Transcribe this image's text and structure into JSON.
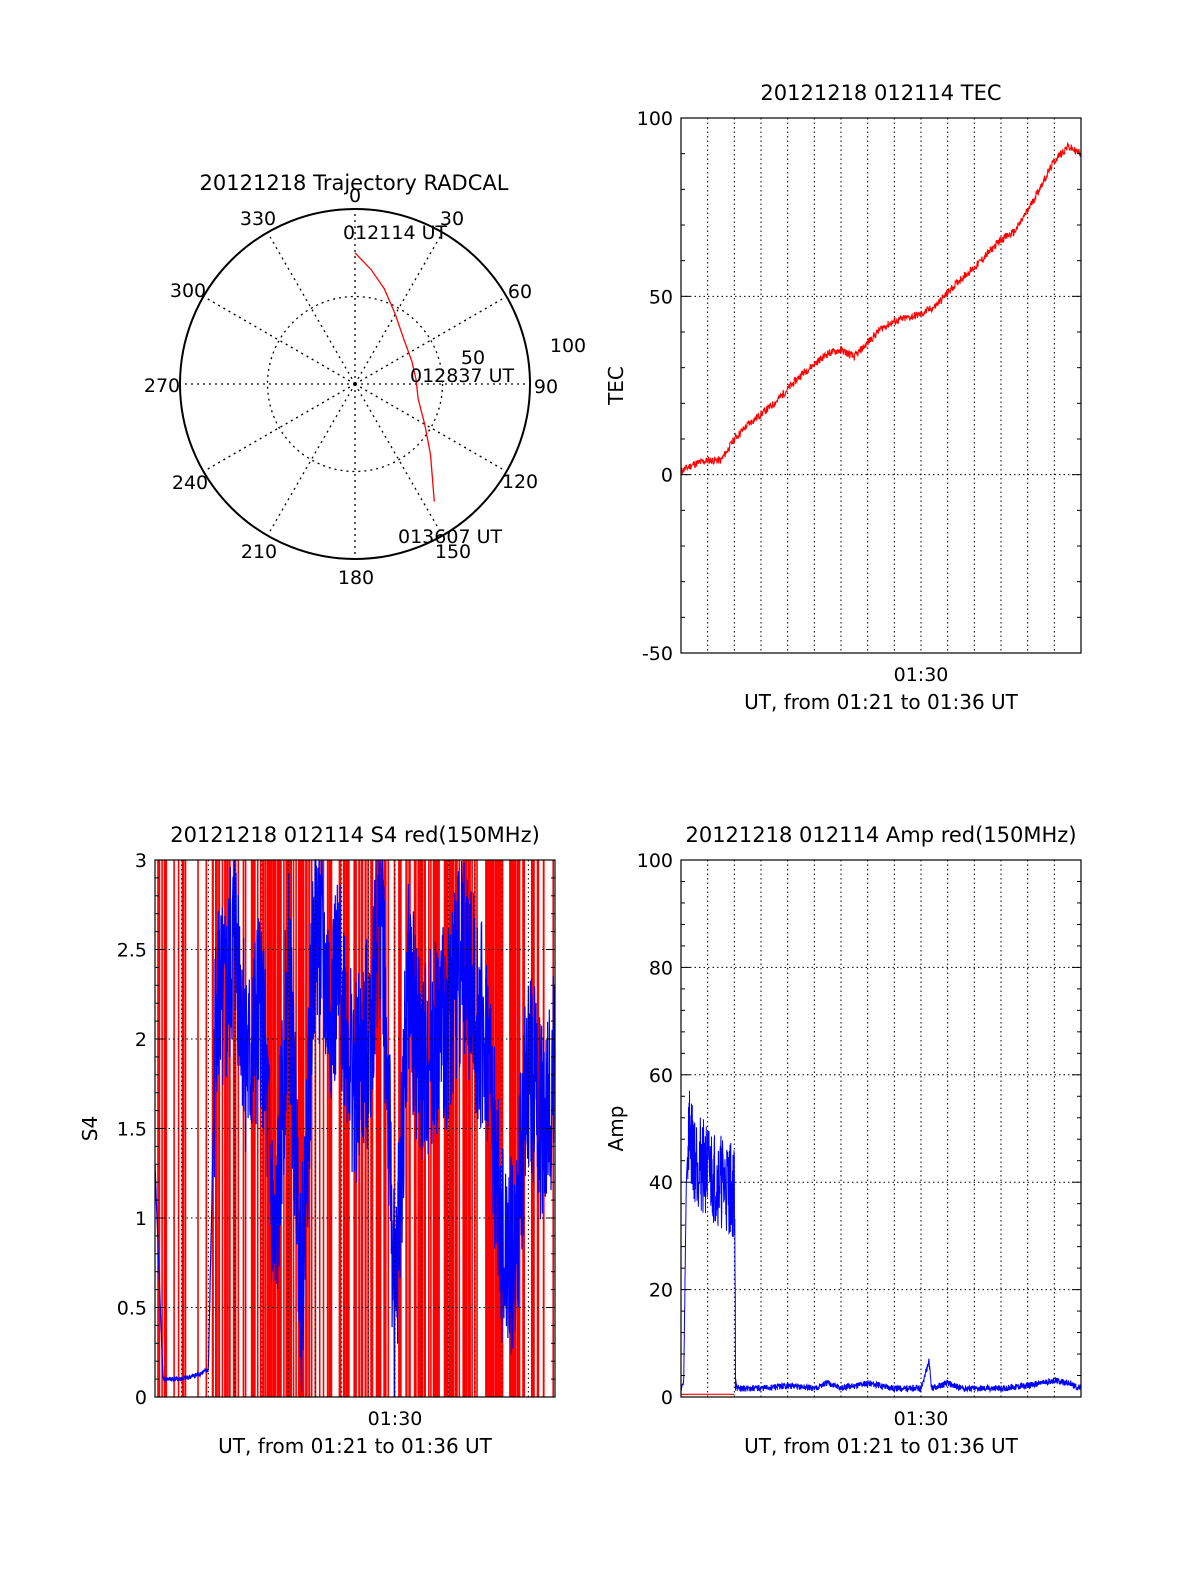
{
  "chart_data": [
    {
      "id": "trajectory",
      "type": "polar",
      "title": "20121218 Trajectory RADCAL",
      "angle_labels": [
        "0",
        "30",
        "60",
        "90",
        "120",
        "150",
        "180",
        "210",
        "240",
        "270",
        "300",
        "330"
      ],
      "radial_labels": [
        "50",
        "100"
      ],
      "annotations": [
        "012114 UT",
        "012837 UT",
        "013607 UT"
      ],
      "track_color": "#ff0000",
      "track": [
        {
          "az": 0,
          "zen": 75
        },
        {
          "az": 8,
          "zen": 66
        },
        {
          "az": 17,
          "zen": 57
        },
        {
          "az": 30,
          "zen": 46
        },
        {
          "az": 47,
          "zen": 38
        },
        {
          "az": 68,
          "zen": 35
        },
        {
          "az": 86,
          "zen": 35
        },
        {
          "az": 103,
          "zen": 37
        },
        {
          "az": 120,
          "zen": 46
        },
        {
          "az": 133,
          "zen": 59
        },
        {
          "az": 146,
          "zen": 81
        }
      ]
    },
    {
      "id": "tec",
      "type": "line",
      "title": "20121218 012114 TEC",
      "xlabel": "UT, from 01:21 to 01:36 UT",
      "ylabel": "TEC",
      "x_tick_labels": [
        "01:30"
      ],
      "x_tick_positions_min": [
        9
      ],
      "x_range_min": [
        0,
        15
      ],
      "ylim": [
        -50,
        100
      ],
      "y_ticks": [
        -50,
        0,
        50,
        100
      ],
      "grid": true,
      "series": [
        {
          "color": "#ff0000",
          "x_min": [
            0,
            0.5,
            1,
            1.5,
            2,
            2.5,
            3,
            3.5,
            4,
            4.5,
            5,
            5.5,
            6,
            6.5,
            7,
            7.5,
            8,
            8.5,
            9,
            9.5,
            10,
            10.5,
            11,
            11.5,
            12,
            12.5,
            13,
            13.5,
            14,
            14.5,
            15
          ],
          "values": [
            1,
            3,
            4,
            4,
            10,
            14,
            17,
            20,
            24,
            28,
            31,
            34,
            35,
            33,
            37,
            41,
            43,
            44,
            45,
            47,
            51,
            55,
            58,
            62,
            66,
            68,
            74,
            81,
            88,
            92,
            90
          ]
        }
      ]
    },
    {
      "id": "s4",
      "type": "line",
      "title": "20121218 012114 S4 red(150MHz)",
      "xlabel": "UT, from 01:21 to 01:36 UT",
      "ylabel": "S4",
      "x_tick_labels": [
        "01:30"
      ],
      "x_tick_positions_min": [
        9
      ],
      "x_range_min": [
        0,
        15
      ],
      "ylim": [
        0,
        3
      ],
      "y_ticks": [
        "0",
        "0.5",
        "1",
        "1.5",
        "2",
        "2.5",
        "3"
      ],
      "grid": true,
      "series": [
        {
          "name": "",
          "color": "#ff0000",
          "note_values": "dense vertical spikes spanning 0 to 3 across the interval"
        },
        {
          "color": "#0000ff",
          "x_min": [
            0,
            0.3,
            0.5,
            1.0,
            1.5,
            2.0,
            2.3,
            2.6,
            3.0,
            3.5,
            4.0,
            4.5,
            5.0,
            5.5,
            6.0,
            6.5,
            7.0,
            7.5,
            8.0,
            8.5,
            9.0,
            9.5,
            10.0,
            10.5,
            11.0,
            11.5,
            12.0,
            12.5,
            13.0,
            13.5,
            14.0,
            14.5,
            15.0
          ],
          "values": [
            1.3,
            0.1,
            0.1,
            0.1,
            0.12,
            0.15,
            2.3,
            2.1,
            2.6,
            1.8,
            2.2,
            0.7,
            2.4,
            0.6,
            2.7,
            2.2,
            2.3,
            1.7,
            2.0,
            2.8,
            0.4,
            2.3,
            1.8,
            2.0,
            2.1,
            2.5,
            2.2,
            1.9,
            0.8,
            0.75,
            1.9,
            1.5,
            1.8
          ]
        }
      ]
    },
    {
      "id": "amp",
      "type": "line",
      "title": "20121218 012114 Amp red(150MHz)",
      "xlabel": "UT, from 01:21 to 01:36 UT",
      "ylabel": "Amp",
      "x_tick_labels": [
        "01:30"
      ],
      "x_tick_positions_min": [
        9
      ],
      "x_range_min": [
        0,
        15
      ],
      "ylim": [
        0,
        100
      ],
      "y_ticks": [
        0,
        20,
        40,
        60,
        80,
        100
      ],
      "grid": true,
      "series": [
        {
          "color": "#0000ff",
          "x_min": [
            0,
            0.1,
            0.2,
            0.3,
            0.5,
            1.0,
            1.5,
            2.0,
            2.05,
            2.1,
            3,
            4,
            5,
            5.5,
            6,
            7,
            8,
            9,
            9.3,
            9.4,
            10,
            10.5,
            11,
            12,
            13,
            13.5,
            14,
            14.5,
            15
          ],
          "values": [
            1,
            2,
            40,
            50,
            45,
            42,
            40,
            38,
            3,
            1,
            1,
            1.5,
            1,
            2,
            1,
            2,
            1,
            1,
            6,
            1,
            2,
            1,
            1,
            1,
            1.5,
            2,
            2.5,
            2,
            1
          ]
        },
        {
          "color": "#ff0000",
          "x_min": [
            0,
            2,
            15
          ],
          "values": [
            0.5,
            0.5,
            0.3
          ]
        }
      ]
    }
  ]
}
